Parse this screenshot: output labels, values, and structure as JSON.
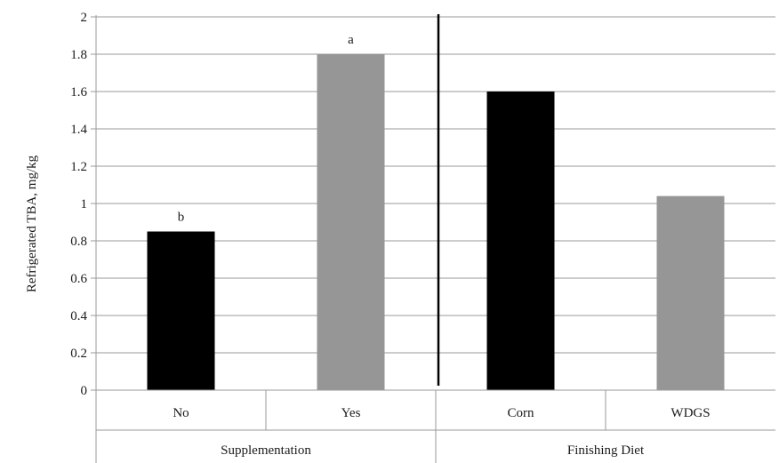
{
  "chart_data": {
    "type": "bar",
    "ylabel": "Refrigerated TBA, mg/kg",
    "ylim": [
      0,
      2
    ],
    "yticks": [
      0,
      0.2,
      0.4,
      0.6,
      0.8,
      1,
      1.2,
      1.4,
      1.6,
      1.8,
      2
    ],
    "ytick_labels": [
      "0",
      "0.2",
      "0.4",
      "0.6",
      "0.8",
      "1",
      "1.2",
      "1.4",
      "1.6",
      "1.8",
      "2"
    ],
    "grid": true,
    "legend": "none",
    "categories": [
      "No",
      "Yes",
      "Corn",
      "WDGS"
    ],
    "values": [
      0.85,
      1.8,
      1.6,
      1.04
    ],
    "bar_colors": [
      "#000000",
      "#969696",
      "#000000",
      "#969696"
    ],
    "data_labels": [
      "b",
      "a",
      "",
      ""
    ],
    "groups": [
      {
        "label": "Supplementation",
        "categories": [
          "No",
          "Yes"
        ]
      },
      {
        "label": "Finishing Diet",
        "categories": [
          "Corn",
          "WDGS"
        ]
      }
    ],
    "separator_after_category": "Yes"
  }
}
